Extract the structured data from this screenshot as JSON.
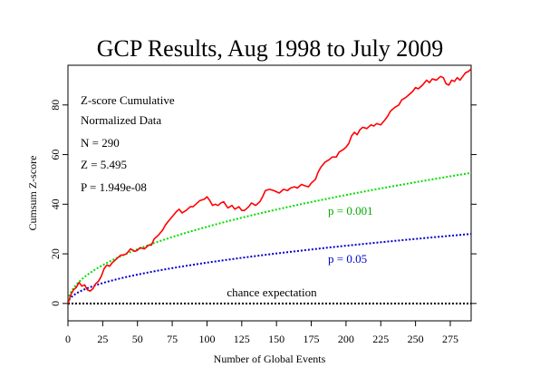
{
  "chart_data": {
    "type": "line",
    "title": "GCP Results, Aug 1998 to July 2009",
    "xlabel": "Number of Global Events",
    "ylabel": "Cumsum Z-score",
    "xlim": [
      0,
      290
    ],
    "ylim": [
      -7,
      96
    ],
    "x_ticks": [
      0,
      25,
      50,
      75,
      100,
      125,
      150,
      175,
      200,
      225,
      250,
      275
    ],
    "y_ticks": [
      0,
      20,
      40,
      60,
      80
    ],
    "grid": false,
    "stats_text": {
      "line1": "Z-score Cumulative",
      "line2": "Normalized Data",
      "line3": "N = 290",
      "line4": "Z = 5.495",
      "line5": "P = 1.949e-08"
    },
    "series": [
      {
        "color": "#ff0000",
        "style": "solid",
        "points": [
          [
            0,
            0
          ],
          [
            2,
            3.5
          ],
          [
            4,
            5.5
          ],
          [
            6,
            6.5
          ],
          [
            8,
            8.5
          ],
          [
            10,
            7
          ],
          [
            12,
            7.5
          ],
          [
            14,
            5.5
          ],
          [
            16,
            5
          ],
          [
            18,
            6
          ],
          [
            20,
            8
          ],
          [
            22,
            9
          ],
          [
            24,
            11
          ],
          [
            26,
            14
          ],
          [
            28,
            15.5
          ],
          [
            30,
            15
          ],
          [
            32,
            16.5
          ],
          [
            35,
            18
          ],
          [
            38,
            19.5
          ],
          [
            40,
            19.5
          ],
          [
            42,
            20
          ],
          [
            45,
            22
          ],
          [
            48,
            21
          ],
          [
            50,
            21.5
          ],
          [
            52,
            22.5
          ],
          [
            55,
            22
          ],
          [
            58,
            23.5
          ],
          [
            60,
            23.5
          ],
          [
            62,
            26
          ],
          [
            65,
            27.5
          ],
          [
            68,
            29.5
          ],
          [
            70,
            31.5
          ],
          [
            72,
            33
          ],
          [
            75,
            35
          ],
          [
            78,
            37
          ],
          [
            80,
            38
          ],
          [
            82,
            36.5
          ],
          [
            85,
            37.5
          ],
          [
            88,
            39
          ],
          [
            90,
            39
          ],
          [
            92,
            40
          ],
          [
            95,
            41.5
          ],
          [
            98,
            42
          ],
          [
            100,
            43
          ],
          [
            102,
            41.5
          ],
          [
            104,
            39.5
          ],
          [
            106,
            40
          ],
          [
            108,
            39.5
          ],
          [
            110,
            40.5
          ],
          [
            112,
            41
          ],
          [
            115,
            38.5
          ],
          [
            118,
            39.5
          ],
          [
            120,
            38
          ],
          [
            123,
            39
          ],
          [
            125,
            37.5
          ],
          [
            127,
            37.5
          ],
          [
            130,
            39
          ],
          [
            132,
            40.5
          ],
          [
            135,
            39.5
          ],
          [
            138,
            41
          ],
          [
            140,
            43
          ],
          [
            142,
            45.5
          ],
          [
            145,
            46
          ],
          [
            148,
            45.5
          ],
          [
            150,
            45
          ],
          [
            152,
            44.5
          ],
          [
            155,
            46
          ],
          [
            158,
            45.5
          ],
          [
            160,
            46.5
          ],
          [
            163,
            47
          ],
          [
            165,
            46.5
          ],
          [
            168,
            48
          ],
          [
            170,
            47.5
          ],
          [
            173,
            47
          ],
          [
            175,
            48.5
          ],
          [
            178,
            50
          ],
          [
            180,
            53
          ],
          [
            182,
            55
          ],
          [
            185,
            57
          ],
          [
            188,
            58
          ],
          [
            190,
            59
          ],
          [
            193,
            59
          ],
          [
            195,
            61
          ],
          [
            198,
            62
          ],
          [
            200,
            63
          ],
          [
            202,
            64.5
          ],
          [
            204,
            67.5
          ],
          [
            206,
            69
          ],
          [
            208,
            68
          ],
          [
            210,
            70
          ],
          [
            212,
            71
          ],
          [
            215,
            70.5
          ],
          [
            218,
            72
          ],
          [
            220,
            71.5
          ],
          [
            222,
            72.5
          ],
          [
            225,
            72
          ],
          [
            228,
            74
          ],
          [
            230,
            75.5
          ],
          [
            232,
            77.5
          ],
          [
            235,
            79
          ],
          [
            238,
            80
          ],
          [
            240,
            82
          ],
          [
            243,
            83
          ],
          [
            245,
            84
          ],
          [
            248,
            85.5
          ],
          [
            250,
            87
          ],
          [
            252,
            86.5
          ],
          [
            255,
            88
          ],
          [
            258,
            90
          ],
          [
            260,
            89
          ],
          [
            262,
            90.5
          ],
          [
            265,
            90
          ],
          [
            268,
            91.5
          ],
          [
            270,
            91
          ],
          [
            272,
            88.5
          ],
          [
            274,
            88
          ],
          [
            276,
            90
          ],
          [
            278,
            89.5
          ],
          [
            280,
            91
          ],
          [
            282,
            90
          ],
          [
            284,
            91.5
          ],
          [
            286,
            93
          ],
          [
            288,
            93.5
          ],
          [
            290,
            94.5
          ]
        ]
      },
      {
        "color": "#00dd00",
        "style": "dotted",
        "label": "p = 0.001",
        "function": "3.09*sqrt(x)"
      },
      {
        "color": "#0000cc",
        "style": "dotted",
        "label": "p = 0.05",
        "function": "1.645*sqrt(x)"
      },
      {
        "color": "#000000",
        "style": "dotted",
        "label": "chance expectation",
        "function": "0"
      }
    ]
  }
}
